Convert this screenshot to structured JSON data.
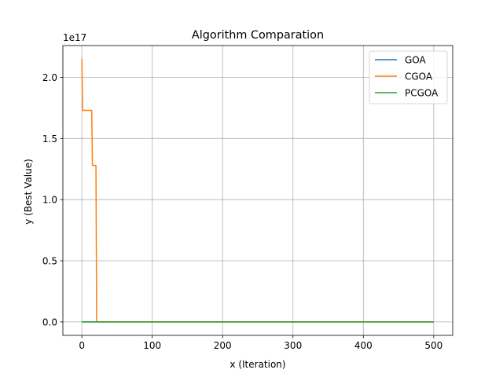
{
  "chart_data": {
    "type": "line",
    "title": "Algorithm Comparation",
    "xlabel": "x (Iteration)",
    "ylabel": "y (Best Value)",
    "y_offset_label": "1e17",
    "xlim": [
      -27,
      527
    ],
    "ylim": [
      -0.11,
      2.26
    ],
    "x_ticks": [
      0,
      100,
      200,
      300,
      400,
      500
    ],
    "x_tick_labels": [
      "0",
      "100",
      "200",
      "300",
      "400",
      "500"
    ],
    "y_ticks": [
      0.0,
      0.5,
      1.0,
      1.5,
      2.0
    ],
    "y_tick_labels": [
      "0.0",
      "0.5",
      "1.0",
      "1.5",
      "2.0"
    ],
    "grid": true,
    "legend_position": "top-right",
    "series": [
      {
        "name": "GOA",
        "color": "#1f77b4",
        "points": [
          [
            0,
            0.0
          ],
          [
            500,
            0.0
          ]
        ]
      },
      {
        "name": "CGOA",
        "color": "#ff7f0e",
        "points": [
          [
            0,
            2.15
          ],
          [
            1,
            1.73
          ],
          [
            14,
            1.73
          ],
          [
            15,
            1.28
          ],
          [
            20,
            1.28
          ],
          [
            21,
            0.0
          ],
          [
            500,
            0.0
          ]
        ]
      },
      {
        "name": "PCGOA",
        "color": "#2ca02c",
        "points": [
          [
            0,
            0.0
          ],
          [
            500,
            0.0
          ]
        ]
      }
    ]
  }
}
